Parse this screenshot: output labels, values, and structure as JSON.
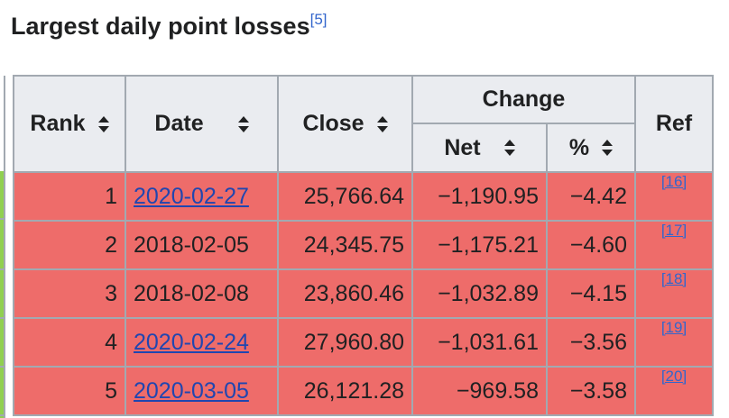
{
  "heading": {
    "title": "Largest daily point losses",
    "ref": "[5]"
  },
  "table": {
    "headers": {
      "rank": "Rank",
      "date": "Date",
      "close": "Close",
      "change": "Change",
      "net": "Net",
      "percent": "%",
      "ref": "Ref"
    },
    "rows": [
      {
        "rank": "1",
        "date": "2020-02-27",
        "date_is_link": true,
        "close": "25,766.64",
        "net": "−1,190.95",
        "percent": "−4.42",
        "ref": "[16]"
      },
      {
        "rank": "2",
        "date": "2018-02-05",
        "date_is_link": false,
        "close": "24,345.75",
        "net": "−1,175.21",
        "percent": "−4.60",
        "ref": "[17]"
      },
      {
        "rank": "3",
        "date": "2018-02-08",
        "date_is_link": false,
        "close": "23,860.46",
        "net": "−1,032.89",
        "percent": "−4.15",
        "ref": "[18]"
      },
      {
        "rank": "4",
        "date": "2020-02-24",
        "date_is_link": true,
        "close": "27,960.80",
        "net": "−1,031.61",
        "percent": "−3.56",
        "ref": "[19]"
      },
      {
        "rank": "5",
        "date": "2020-03-05",
        "date_is_link": true,
        "close": "26,121.28",
        "net": "−969.58",
        "percent": "−3.58",
        "ref": "[20]"
      }
    ]
  },
  "colors": {
    "header_bg": "#eaecf0",
    "row_bg": "#ee6c6a",
    "border": "#a2a9b1",
    "link": "#2046b0",
    "left_strip": "#90d050"
  },
  "icons": {
    "sort": "sort-icon"
  }
}
